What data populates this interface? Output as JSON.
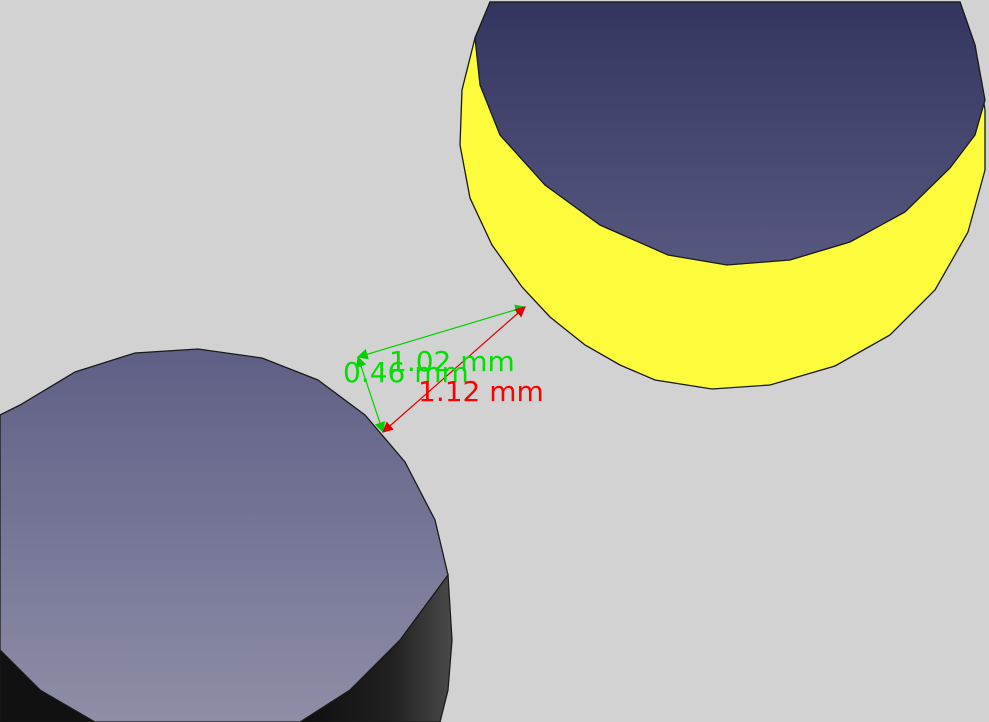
{
  "viewport": {
    "background_color": "#d2d2d2"
  },
  "objects": {
    "selected_cylinder": {
      "top_face_color": "#3d3f6c",
      "side_color": "#fdfc3c",
      "highlighted": true
    },
    "lower_cylinder": {
      "top_face_color": "#7a7a98",
      "side_color": "#1a1a1a",
      "highlighted": false
    }
  },
  "measurements": {
    "green_color": "#00e000",
    "red_color": "#ff0000",
    "dim_x": "1.02 mm",
    "dim_y": "0.46 mm",
    "distance": "1.12 mm"
  }
}
